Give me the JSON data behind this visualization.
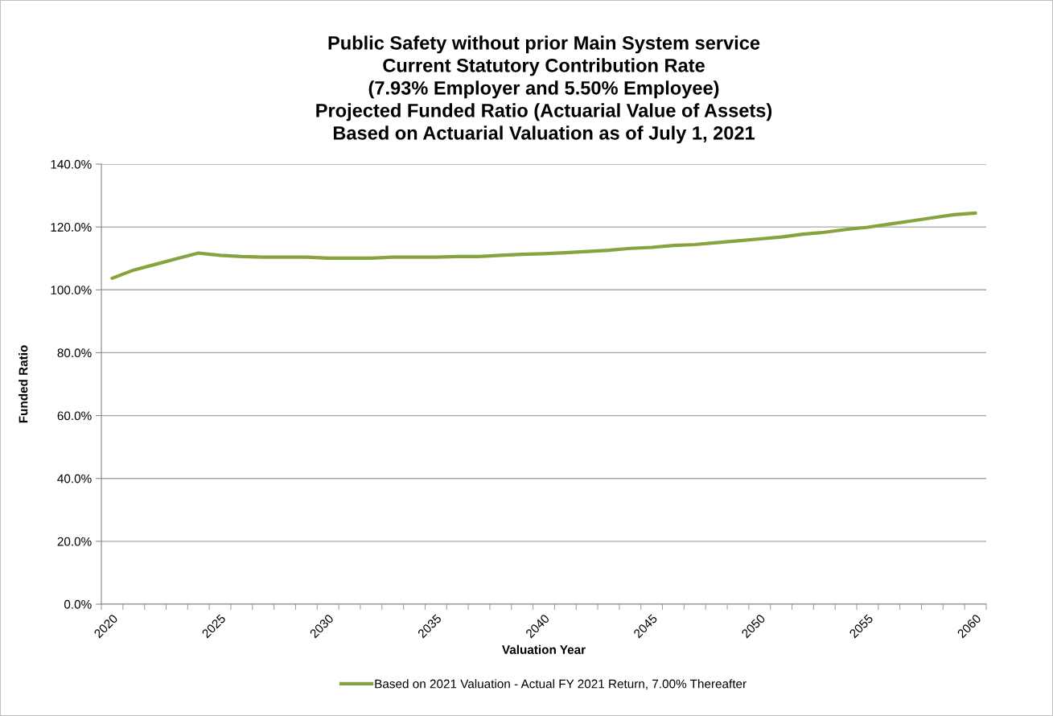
{
  "chart_data": {
    "type": "line",
    "title": "Public Safety without prior Main System service\nCurrent Statutory Contribution Rate\n(7.93% Employer and 5.50% Employee)\nProjected Funded Ratio (Actuarial Value of Assets)\nBased on Actuarial Valuation as of July 1, 2021",
    "xlabel": "Valuation Year",
    "ylabel": "Funded Ratio",
    "categories": [
      "2020",
      null,
      null,
      null,
      null,
      "2025",
      null,
      null,
      null,
      null,
      "2030",
      null,
      null,
      null,
      null,
      "2035",
      null,
      null,
      null,
      null,
      "2040",
      null,
      null,
      null,
      null,
      "2045",
      null,
      null,
      null,
      null,
      "2050",
      null,
      null,
      null,
      null,
      "2055",
      null,
      null,
      null,
      null,
      "2060"
    ],
    "series": [
      {
        "name": "Based on 2021 Valuation - Actual FY 2021 Return, 7.00% Thereafter",
        "color": "#86a33e",
        "values": [
          103.7,
          106.3,
          108.1,
          109.9,
          111.7,
          111.0,
          110.6,
          110.4,
          110.4,
          110.4,
          110.1,
          110.1,
          110.1,
          110.4,
          110.4,
          110.4,
          110.6,
          110.6,
          111.0,
          111.3,
          111.5,
          111.8,
          112.2,
          112.6,
          113.2,
          113.5,
          114.1,
          114.4,
          115.0,
          115.6,
          116.2,
          116.8,
          117.7,
          118.3,
          119.2,
          119.9,
          120.9,
          121.9,
          122.9,
          123.9,
          124.4
        ]
      }
    ],
    "ylim": [
      0,
      140
    ],
    "yticks": [
      {
        "value": 0,
        "label": "0.0%"
      },
      {
        "value": 20,
        "label": "20.0%"
      },
      {
        "value": 40,
        "label": "40.0%"
      },
      {
        "value": 60,
        "label": "60.0%"
      },
      {
        "value": 80,
        "label": "80.0%"
      },
      {
        "value": 100,
        "label": "100.0%"
      },
      {
        "value": 120,
        "label": "120.0%"
      },
      {
        "value": 140,
        "label": "140.0%"
      }
    ],
    "grid": "y",
    "legend": "bottom",
    "marker": "none",
    "line_style": "solid"
  }
}
